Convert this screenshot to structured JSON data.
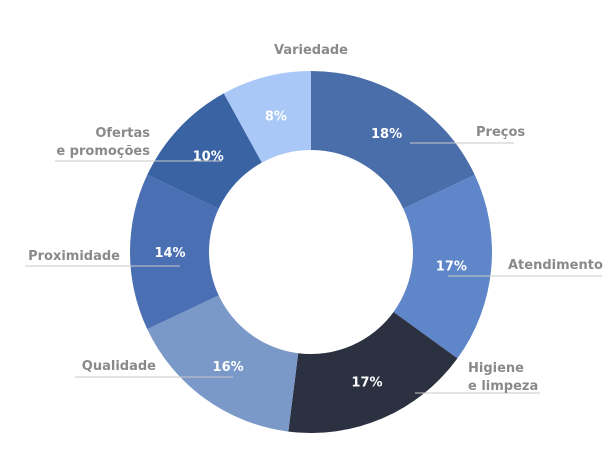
{
  "chart_data": {
    "type": "pie",
    "style": "donut",
    "title": "",
    "slices": [
      {
        "label": "Preços",
        "value": 18,
        "display": "18%",
        "color": "#4a6ea9"
      },
      {
        "label": "Atendimento",
        "value": 17,
        "display": "17%",
        "color": "#5e86c8"
      },
      {
        "label": "Higiene e limpeza",
        "label_lines": [
          "Higiene",
          "e limpeza"
        ],
        "value": 17,
        "display": "17%",
        "color": "#2b3140"
      },
      {
        "label": "Qualidade",
        "value": 16,
        "display": "16%",
        "color": "#7a99c9"
      },
      {
        "label": "Proximidade",
        "value": 14,
        "display": "14%",
        "color": "#4b6fb3"
      },
      {
        "label": "Ofertas e promoções",
        "label_lines": [
          "Ofertas",
          "e promoções"
        ],
        "value": 10,
        "display": "10%",
        "color": "#3a63a3"
      },
      {
        "label": "Variedade",
        "value": 8,
        "display": "8%",
        "color": "#aac8f7"
      }
    ]
  }
}
